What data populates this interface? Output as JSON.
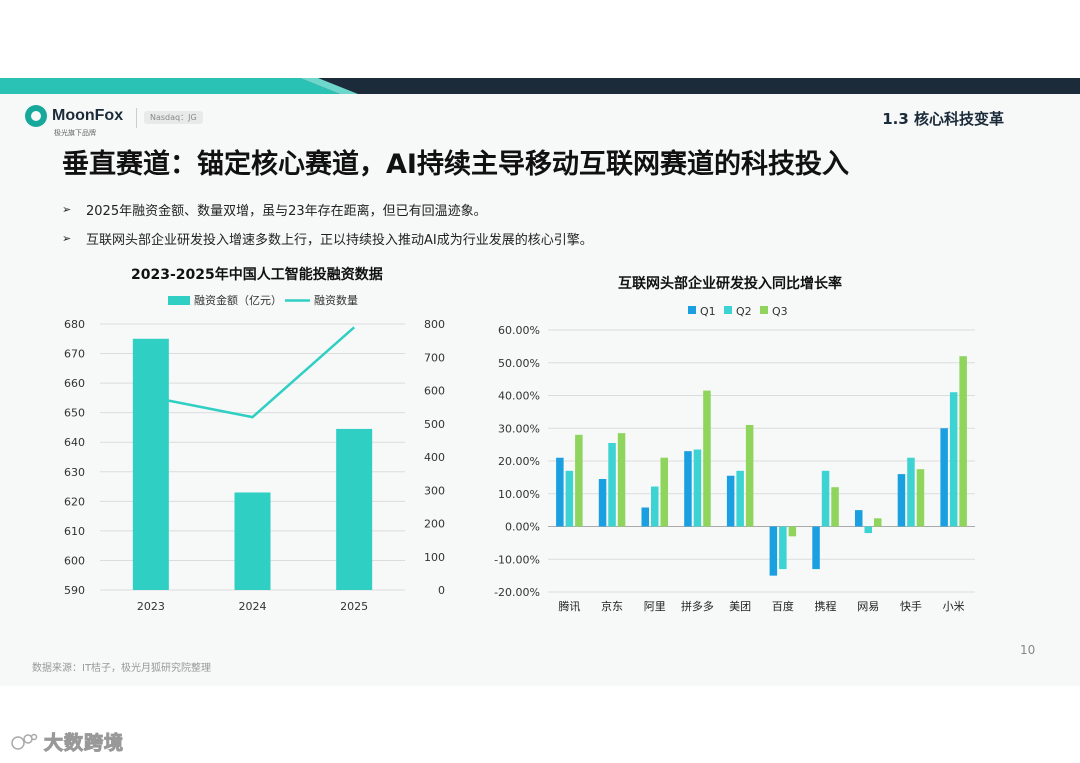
{
  "header": {
    "logo_name": "MoonFox",
    "logo_sub": "极光旗下品牌",
    "nasdaq": "Nasdaq：JG",
    "section": "1.3 核心科技变革"
  },
  "title": "垂直赛道：锚定核心赛道，AI持续主导移动互联网赛道的科技投入",
  "bullets": [
    "2025年融资金额、数量双增，虽与23年存在距离，但已有回温迹象。",
    "互联网头部企业研发投入增速多数上行，正以持续投入推动AI成为行业发展的核心引擎。"
  ],
  "bullet_icon": "➢",
  "chart_data": [
    {
      "type": "bar",
      "title": "2023-2025年中国人工智能投融资数据",
      "categories": [
        "2023",
        "2024",
        "2025"
      ],
      "series": [
        {
          "name": "融资金额（亿元）",
          "type": "bar",
          "axis": "left",
          "values": [
            675,
            623,
            644.5
          ],
          "color": "#2fd0c3"
        },
        {
          "name": "融资数量",
          "type": "line",
          "axis": "right",
          "values": [
            580,
            520,
            790
          ],
          "color": "#2fd0c3"
        }
      ],
      "ylim_left": [
        590,
        680
      ],
      "yticks_left": [
        "590",
        "600",
        "610",
        "620",
        "630",
        "640",
        "650",
        "660",
        "670",
        "680"
      ],
      "ylim_right": [
        0,
        800
      ],
      "yticks_right": [
        "0",
        "100",
        "200",
        "300",
        "400",
        "500",
        "600",
        "700",
        "800"
      ],
      "legend": "top"
    },
    {
      "type": "bar",
      "title": "互联网头部企业研发投入同比增长率",
      "categories": [
        "腾讯",
        "京东",
        "阿里",
        "拼多多",
        "美团",
        "百度",
        "携程",
        "网易",
        "快手",
        "小米"
      ],
      "series": [
        {
          "name": "Q1",
          "color": "#1a9fe0",
          "values": [
            21,
            14.5,
            5.8,
            23,
            15.5,
            -15,
            -13,
            5,
            16,
            30
          ]
        },
        {
          "name": "Q2",
          "color": "#3dd3d3",
          "values": [
            17,
            25.5,
            12.2,
            23.5,
            17,
            -13,
            17,
            -2,
            21,
            41
          ]
        },
        {
          "name": "Q3",
          "color": "#8fd45c",
          "values": [
            28,
            28.5,
            21,
            41.5,
            31,
            -3,
            12,
            2.5,
            17.5,
            52
          ]
        }
      ],
      "ylim": [
        -20,
        60
      ],
      "yticks": [
        "-20.00%",
        "-10.00%",
        "0.00%",
        "10.00%",
        "20.00%",
        "30.00%",
        "40.00%",
        "50.00%",
        "60.00%"
      ],
      "legend": "top"
    }
  ],
  "footer": {
    "source": "数据来源：IT桔子，极光月狐研究院整理",
    "page": "10"
  },
  "watermark": "大数跨境"
}
